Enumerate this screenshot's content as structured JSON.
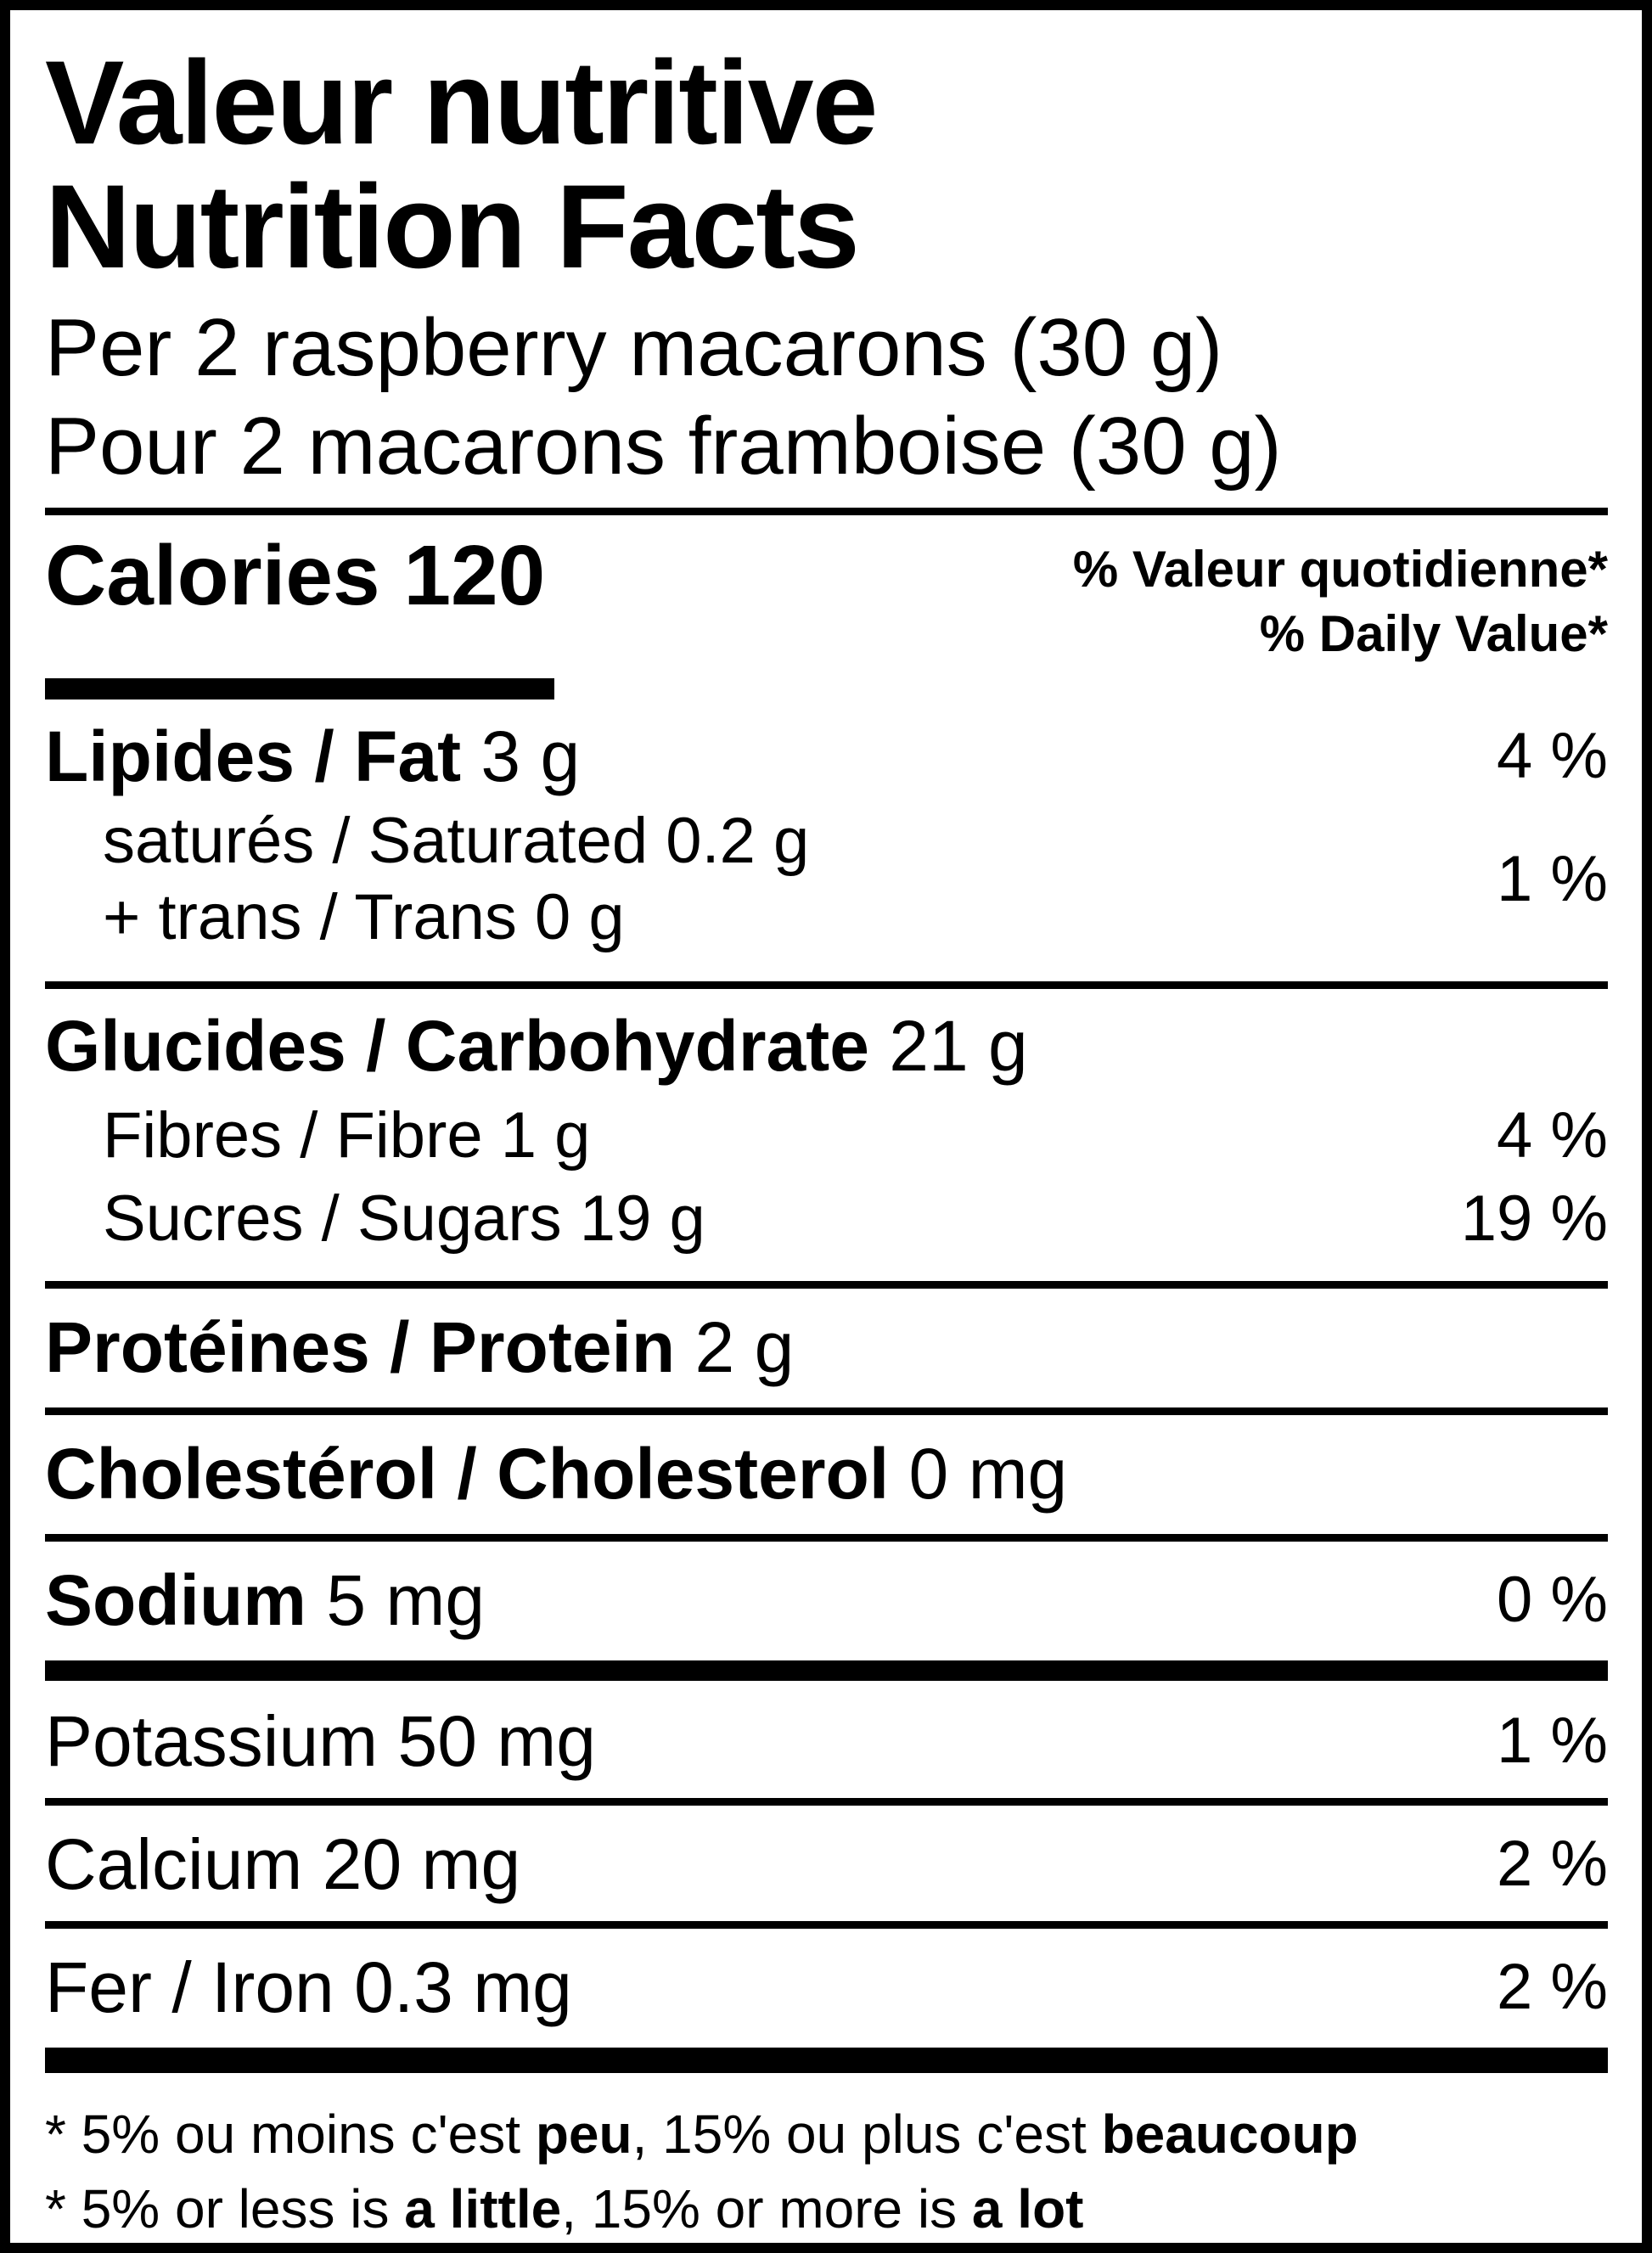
{
  "nutrition_label": {
    "title_fr": "Valeur nutritive",
    "title_en": "Nutrition Facts",
    "serving_line_en": "Per 2 raspberry macarons (30 g)",
    "serving_line_fr": "Pour 2 macarons framboise (30 g)",
    "calories_label": "Calories",
    "calories_value": "120",
    "daily_value_header_fr": "% Valeur quotidienne*",
    "daily_value_header_en": "% Daily Value*",
    "colors": {
      "text": "#000000",
      "background": "#ffffff"
    },
    "nutrients": {
      "fat": {
        "label_bold": "Lipides / Fat",
        "amount": "3 g",
        "dv": "4 %"
      },
      "saturated_trans": {
        "line1": "saturés / Saturated 0.2 g",
        "line2": "+ trans / Trans 0 g",
        "dv": "1 %"
      },
      "carbohydrate": {
        "label_bold": "Glucides / Carbohydrate",
        "amount": "21 g"
      },
      "fibre": {
        "label": "Fibres / Fibre 1 g",
        "dv": "4 %"
      },
      "sugars": {
        "label": "Sucres / Sugars 19 g",
        "dv": "19 %"
      },
      "protein": {
        "label_bold": "Protéines / Protein",
        "amount": "2 g"
      },
      "cholesterol": {
        "label_bold": "Cholestérol / Cholesterol",
        "amount": "0 mg"
      },
      "sodium": {
        "label_bold": "Sodium",
        "amount": "5 mg",
        "dv": "0 %"
      },
      "potassium": {
        "label": "Potassium 50 mg",
        "dv": "1 %"
      },
      "calcium": {
        "label": "Calcium 20 mg",
        "dv": "2 %"
      },
      "iron": {
        "label": "Fer / Iron 0.3 mg",
        "dv": "2 %"
      }
    },
    "footnote_fr": {
      "part1": "* 5% ou moins c'est ",
      "bold1": "peu",
      "part2": ", 15% ou plus c'est ",
      "bold2": "beaucoup"
    },
    "footnote_en": {
      "part1": "* 5% or less is ",
      "bold1": "a little",
      "part2": ", 15% or more is ",
      "bold2": "a lot"
    }
  }
}
